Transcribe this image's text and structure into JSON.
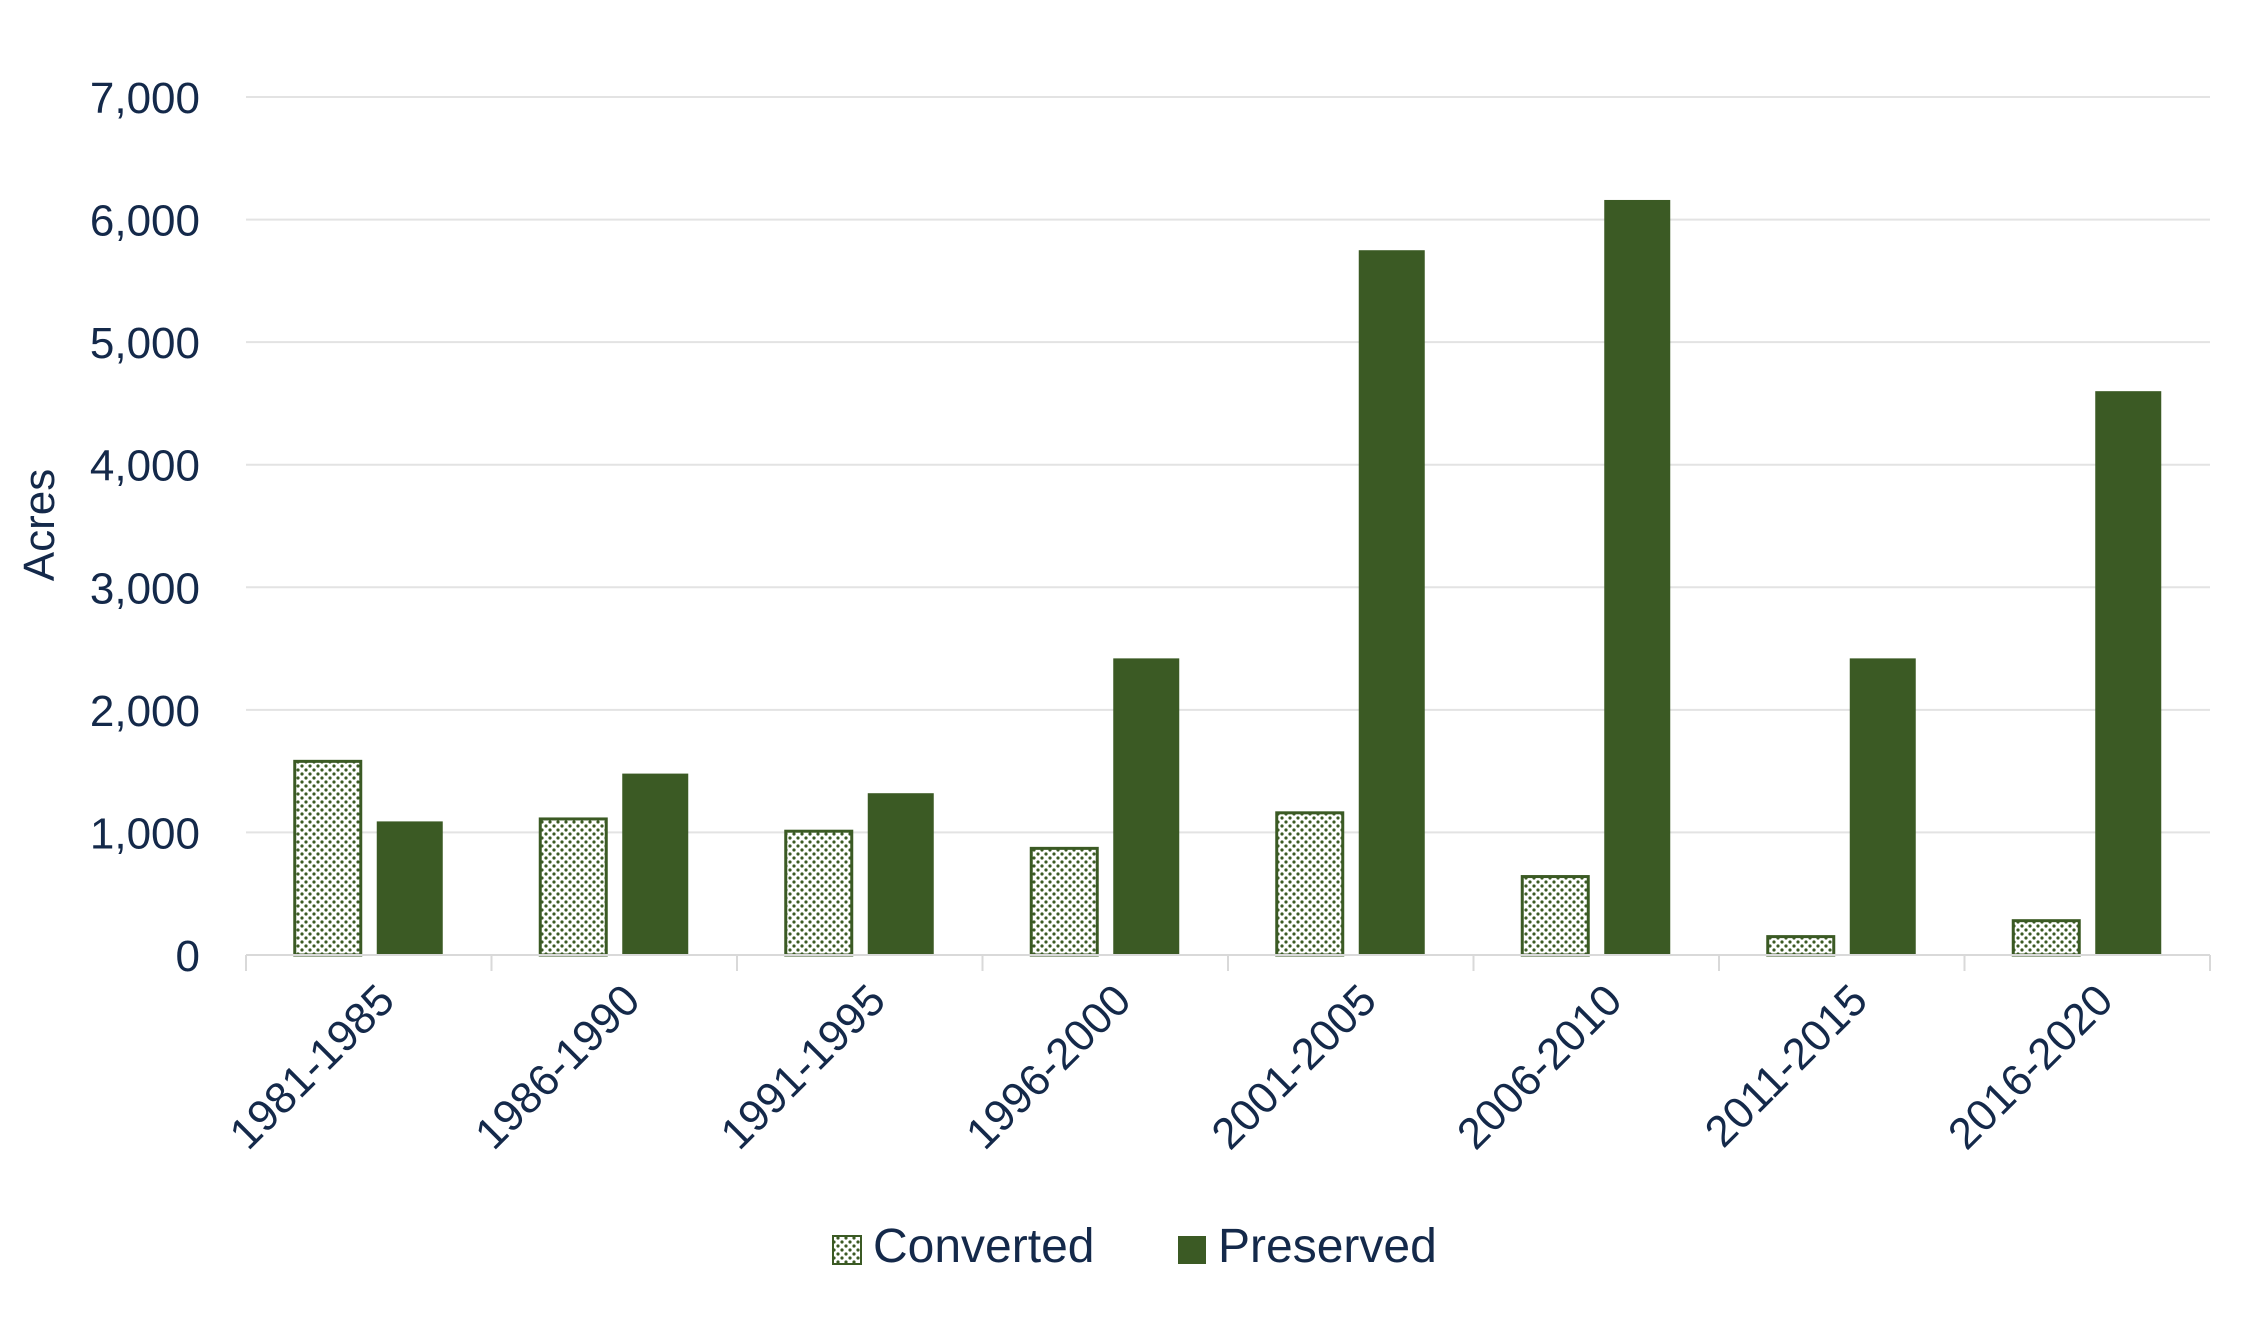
{
  "chart_data": {
    "type": "bar",
    "title": "",
    "xlabel": "",
    "ylabel": "Acres",
    "ylim": [
      0,
      7000
    ],
    "yticks": [
      0,
      1000,
      2000,
      3000,
      4000,
      5000,
      6000,
      7000
    ],
    "ytick_labels": [
      "0",
      "1,000",
      "2,000",
      "3,000",
      "4,000",
      "5,000",
      "6,000",
      "7,000"
    ],
    "categories": [
      "1981-1985",
      "1986-1990",
      "1991-1995",
      "1996-2000",
      "2001-2005",
      "2006-2010",
      "2011-2015",
      "2016-2020"
    ],
    "series": [
      {
        "name": "Converted",
        "values": [
          1580,
          1110,
          1010,
          870,
          1160,
          640,
          150,
          280
        ],
        "color": "#3b5a24",
        "pattern": "dotted"
      },
      {
        "name": "Preserved",
        "values": [
          1090,
          1480,
          1320,
          2420,
          5750,
          6160,
          2420,
          4600
        ],
        "color": "#3b5a24",
        "pattern": "solid"
      }
    ],
    "grid": true,
    "legend_position": "bottom"
  }
}
